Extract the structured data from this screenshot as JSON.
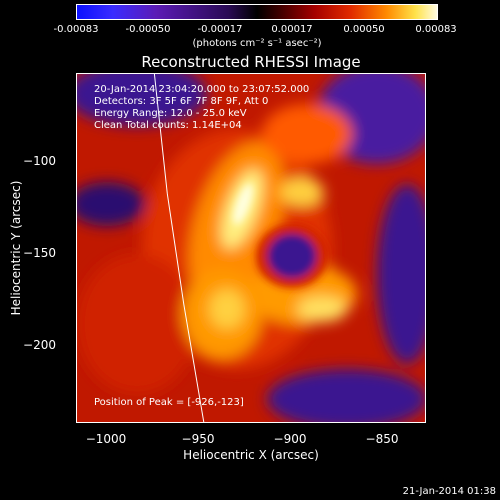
{
  "chart_data": {
    "type": "heatmap",
    "title": "Reconstructed RHESSI Image",
    "colorbar": {
      "ticks": [
        "-0.00083",
        "-0.00050",
        "-0.00017",
        "0.00017",
        "0.00050",
        "0.00083"
      ],
      "unit_label": "(photons cm⁻² s⁻¹ asec⁻²)",
      "range": [
        -0.00083,
        0.00083
      ]
    },
    "xlabel": "Heliocentric X (arcsec)",
    "ylabel": "Heliocentric Y (arcsec)",
    "xlim": [
      -1015,
      -825
    ],
    "ylim": [
      -245,
      -55
    ],
    "x_ticks": [
      "−1000",
      "−950",
      "−900",
      "−850"
    ],
    "y_ticks": [
      "−100",
      "−150",
      "−200"
    ],
    "info_lines": [
      "20-Jan-2014 23:04:20.000 to 23:07:52.000",
      "Detectors: 3F 5F 6F 7F 8F 9F, Att 0",
      "Energy Range: 12.0 - 25.0 keV",
      "Clean     Total counts: 1.14E+04"
    ],
    "peak_label": "Position of Peak = [-926,-123]",
    "peak": [
      -926,
      -123
    ],
    "limb_points": [
      [
        -973,
        -55
      ],
      [
        -966,
        -120
      ],
      [
        -957,
        -180
      ],
      [
        -946,
        -245
      ]
    ]
  },
  "footer": {
    "date": "21-Jan-2014 01:38"
  },
  "colors": {
    "border": "#ffffff",
    "background": "#000000"
  }
}
